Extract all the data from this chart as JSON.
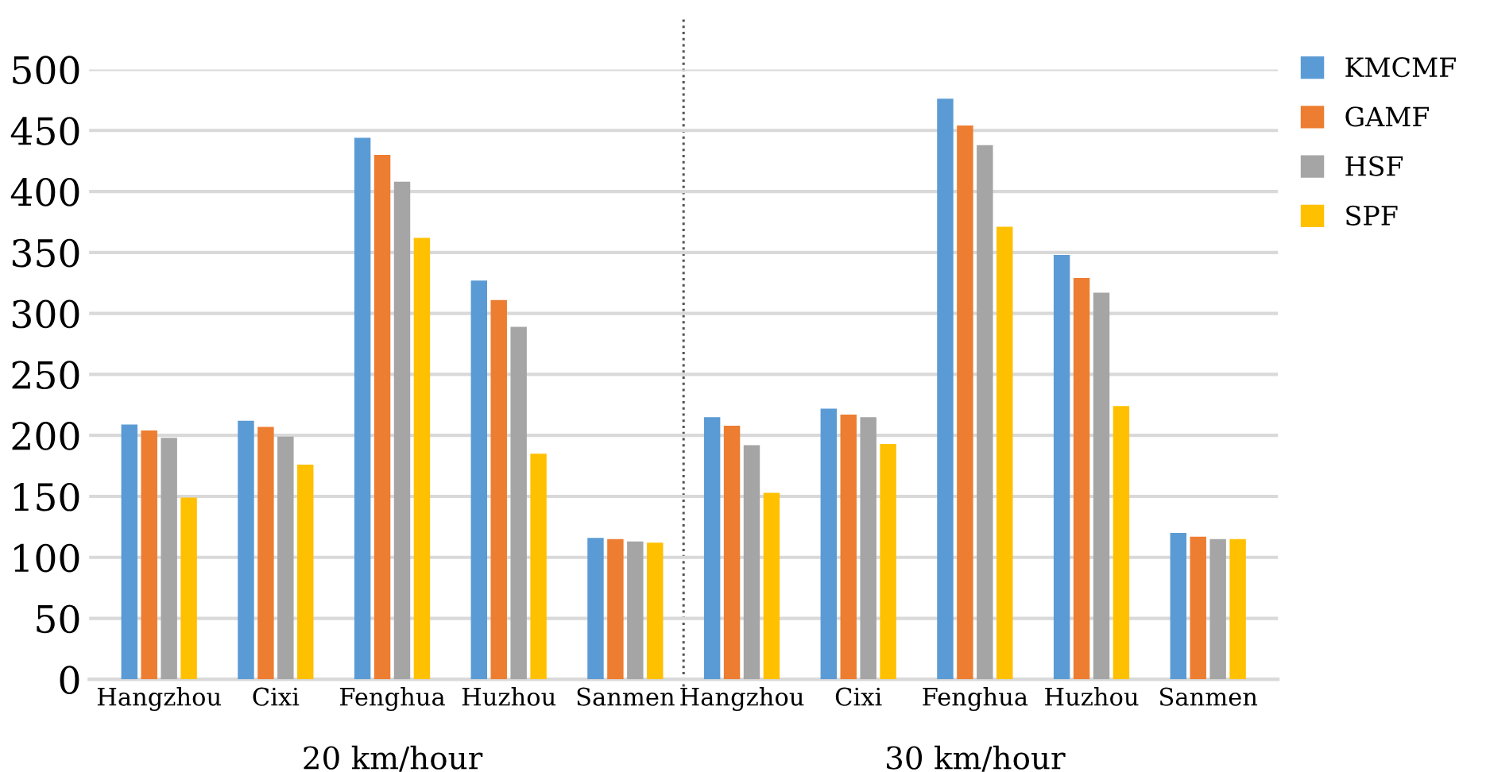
{
  "chart_data": {
    "type": "bar",
    "categories": [
      "Hangzhou",
      "Cixi",
      "Fenghua",
      "Huzhou",
      "Sanmen",
      "Hangzhou",
      "Cixi",
      "Fenghua",
      "Huzhou",
      "Sanmen"
    ],
    "series": [
      {
        "name": "KMCMF",
        "color": "#5b9bd5",
        "values": [
          209,
          212,
          444,
          327,
          116,
          215,
          222,
          476,
          348,
          120
        ]
      },
      {
        "name": "GAMF",
        "color": "#ed7d31",
        "values": [
          204,
          207,
          430,
          311,
          115,
          208,
          217,
          454,
          329,
          117
        ]
      },
      {
        "name": "HSF",
        "color": "#a5a5a5",
        "values": [
          198,
          199,
          408,
          289,
          113,
          192,
          215,
          438,
          317,
          115
        ]
      },
      {
        "name": "SPF",
        "color": "#ffc000",
        "values": [
          149,
          176,
          362,
          185,
          112,
          153,
          193,
          371,
          224,
          115
        ]
      }
    ],
    "annotations": [
      "20 km/hour",
      "30 km/hour"
    ],
    "ylim": [
      0,
      500
    ],
    "yticks": [
      0,
      50,
      100,
      150,
      200,
      250,
      300,
      350,
      400,
      450,
      500
    ],
    "grid": "y",
    "legend": "top right"
  }
}
